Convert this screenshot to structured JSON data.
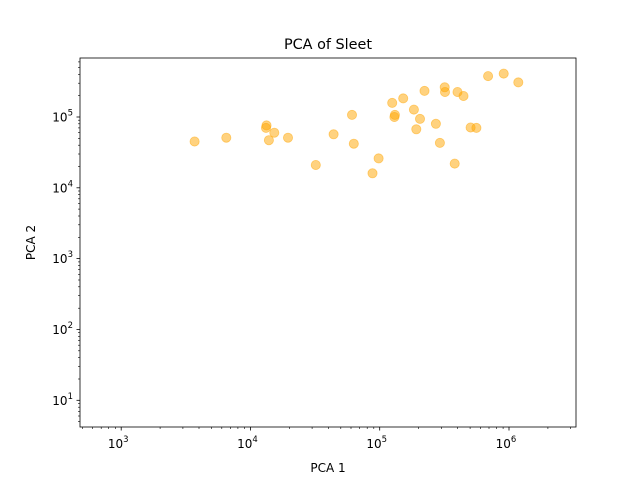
{
  "chart_data": {
    "type": "scatter",
    "title": "PCA of Sleet",
    "xlabel": "PCA 1",
    "ylabel": "PCA 2",
    "xscale": "log",
    "yscale": "log",
    "xlim": [
      480,
      3300000
    ],
    "ylim": [
      4.2,
      680000
    ],
    "x_ticks": [
      {
        "value": 1000,
        "base": "10",
        "exp": "3"
      },
      {
        "value": 10000,
        "base": "10",
        "exp": "4"
      },
      {
        "value": 100000,
        "base": "10",
        "exp": "5"
      },
      {
        "value": 1000000,
        "base": "10",
        "exp": "6"
      }
    ],
    "y_ticks": [
      {
        "value": 10,
        "base": "10",
        "exp": "1"
      },
      {
        "value": 100,
        "base": "10",
        "exp": "2"
      },
      {
        "value": 1000,
        "base": "10",
        "exp": "3"
      },
      {
        "value": 10000,
        "base": "10",
        "exp": "4"
      },
      {
        "value": 100000,
        "base": "10",
        "exp": "5"
      }
    ],
    "grid": false,
    "legend": "none",
    "marker_color": "#FFA500",
    "marker_alpha": 0.5,
    "points": [
      {
        "x": 3700,
        "y": 45000
      },
      {
        "x": 6500,
        "y": 51000
      },
      {
        "x": 13200,
        "y": 70000
      },
      {
        "x": 13300,
        "y": 76000
      },
      {
        "x": 13900,
        "y": 47000
      },
      {
        "x": 15300,
        "y": 60000
      },
      {
        "x": 19500,
        "y": 51000
      },
      {
        "x": 32000,
        "y": 21000
      },
      {
        "x": 44000,
        "y": 57000
      },
      {
        "x": 61000,
        "y": 107000
      },
      {
        "x": 63000,
        "y": 42000
      },
      {
        "x": 88000,
        "y": 16000
      },
      {
        "x": 98000,
        "y": 26000
      },
      {
        "x": 125000,
        "y": 158000
      },
      {
        "x": 130000,
        "y": 100000
      },
      {
        "x": 131000,
        "y": 107000
      },
      {
        "x": 152000,
        "y": 183000
      },
      {
        "x": 184000,
        "y": 127000
      },
      {
        "x": 192000,
        "y": 67000
      },
      {
        "x": 205000,
        "y": 94000
      },
      {
        "x": 222000,
        "y": 233000
      },
      {
        "x": 272000,
        "y": 80000
      },
      {
        "x": 292000,
        "y": 43000
      },
      {
        "x": 318000,
        "y": 262000
      },
      {
        "x": 320000,
        "y": 225000
      },
      {
        "x": 380000,
        "y": 22000
      },
      {
        "x": 400000,
        "y": 225000
      },
      {
        "x": 445000,
        "y": 198000
      },
      {
        "x": 505000,
        "y": 71000
      },
      {
        "x": 560000,
        "y": 70000
      },
      {
        "x": 690000,
        "y": 378000
      },
      {
        "x": 910000,
        "y": 410000
      },
      {
        "x": 1180000,
        "y": 308000
      }
    ]
  }
}
